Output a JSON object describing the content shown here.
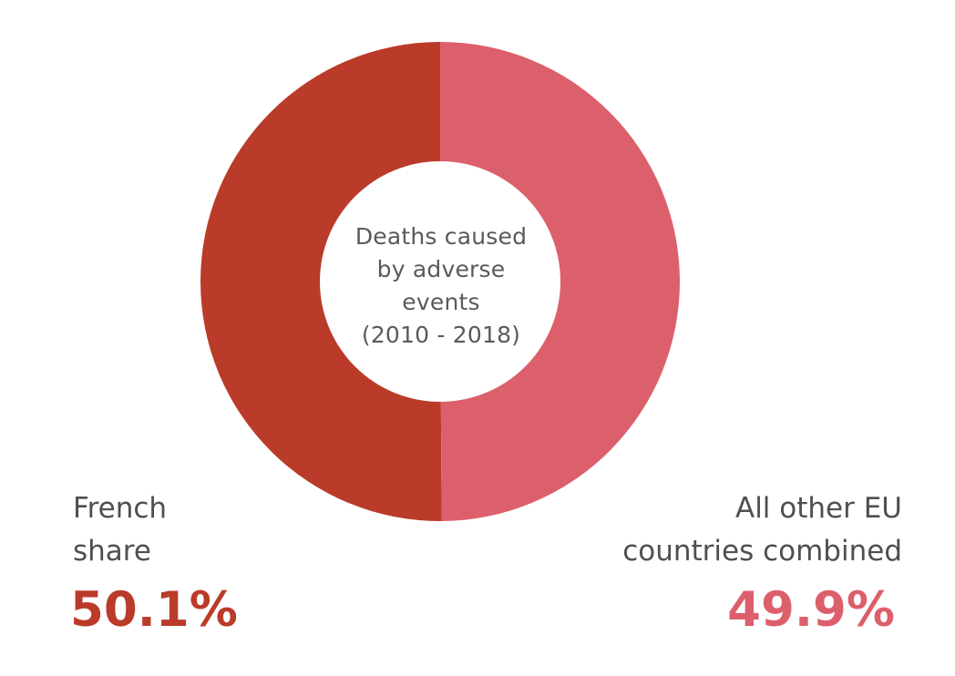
{
  "chart_data": {
    "type": "pie",
    "variant": "donut",
    "center_text": [
      "Deaths caused",
      "by adverse",
      "events",
      "(2010 - 2018)"
    ],
    "slices": [
      {
        "label_lines": [
          "French",
          "share"
        ],
        "value": 50.1,
        "display": "50.1%",
        "color": "#ba3b29"
      },
      {
        "label_lines": [
          "All other EU",
          "countries combined"
        ],
        "value": 49.9,
        "display": "49.9%",
        "color": "#dc606c"
      }
    ]
  }
}
